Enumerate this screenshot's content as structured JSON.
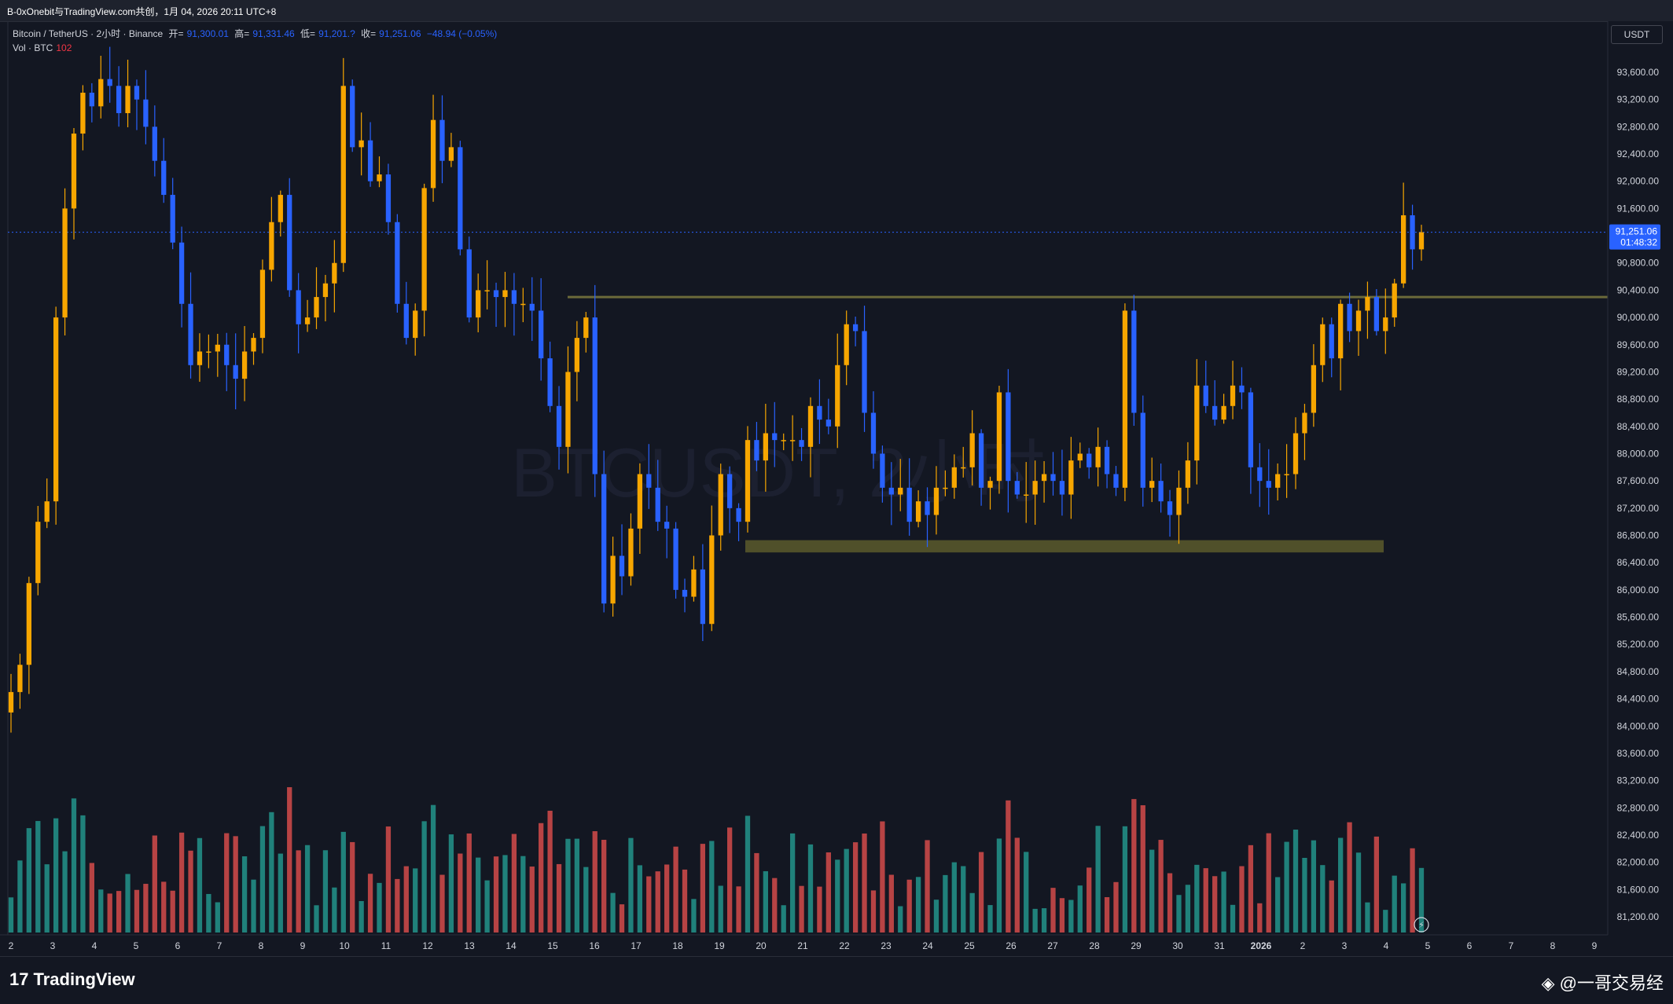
{
  "header": {
    "title": "B-0xOnebit与TradingView.com共创，1月 04, 2026 20:11 UTC+8"
  },
  "legend": {
    "symbol": "Bitcoin / TetherUS · 2小时 · Binance",
    "open_label": "开=",
    "open_value": "91,300.01",
    "high_label": "高=",
    "high_value": "91,331.46",
    "low_label": "低=",
    "low_value": "91,201.?",
    "close_label": "收=",
    "close_value": "91,251.06",
    "change": "−48.94 (−0.05%)",
    "vol_label": "Vol · BTC",
    "vol_value": "102"
  },
  "currency_button": "USDT",
  "watermark": "BTCUSDT, 2小时",
  "price_tag": {
    "price": "91,251.06",
    "countdown": "01:48:32",
    "value": 91251.06
  },
  "footer": {
    "brand": "TradingView",
    "brand_mark": "17",
    "credit": "@一哥交易经"
  },
  "colors": {
    "up": "#f7a600",
    "down": "#2962ff",
    "vol_up": "#26a69a",
    "vol_down": "#ef5350",
    "zone": "#5c5a2c",
    "background": "#131722"
  },
  "chart_data": {
    "type": "candlestick",
    "ylim": [
      80900,
      94000
    ],
    "y_ticks": [
      "81,200.00",
      "81,600.00",
      "82,000.00",
      "82,400.00",
      "82,800.00",
      "83,200.00",
      "83,600.00",
      "84,000.00",
      "84,400.00",
      "84,800.00",
      "85,200.00",
      "85,600.00",
      "86,000.00",
      "86,400.00",
      "86,800.00",
      "87,200.00",
      "87,600.00",
      "88,000.00",
      "88,400.00",
      "88,800.00",
      "89,200.00",
      "89,600.00",
      "90,000.00",
      "90,400.00",
      "90,800.00",
      "91,200.00",
      "91,600.00",
      "92,000.00",
      "92,400.00",
      "92,800.00",
      "93,200.00",
      "93,600.00"
    ],
    "y_tick_values": [
      81200,
      81600,
      82000,
      82400,
      82800,
      83200,
      83600,
      84000,
      84400,
      84800,
      85200,
      85600,
      86000,
      86400,
      86800,
      87200,
      87600,
      88000,
      88400,
      88800,
      89200,
      89600,
      90000,
      90400,
      90800,
      91200,
      91600,
      92000,
      92400,
      92800,
      93200,
      93600
    ],
    "x_ticks": [
      "2",
      "3",
      "4",
      "5",
      "6",
      "7",
      "8",
      "9",
      "10",
      "11",
      "12",
      "13",
      "14",
      "15",
      "16",
      "17",
      "18",
      "19",
      "20",
      "21",
      "22",
      "23",
      "24",
      "25",
      "26",
      "27",
      "28",
      "29",
      "30",
      "31",
      "2026",
      "2",
      "3",
      "4",
      "5",
      "6",
      "7",
      "8",
      "9"
    ],
    "resistance_line": 90300,
    "support_zone": [
      86550,
      86730
    ],
    "closes": [
      84500,
      84900,
      86100,
      87000,
      87300,
      90000,
      91600,
      92700,
      93300,
      93100,
      93500,
      93400,
      93000,
      93400,
      93200,
      92800,
      92300,
      91800,
      91100,
      90200,
      89300,
      89500,
      89500,
      89600,
      89300,
      89100,
      89500,
      89700,
      90700,
      91400,
      91800,
      90400,
      89900,
      90000,
      90300,
      90500,
      90800,
      93400,
      92500,
      92600,
      92000,
      92100,
      91400,
      90200,
      89700,
      90100,
      91900,
      92900,
      92300,
      92500,
      91000,
      90000,
      90400,
      90400,
      90300,
      90400,
      90200,
      90200,
      90100,
      89400,
      88700,
      88100,
      89200,
      89700,
      90000,
      87700,
      85800,
      86500,
      86200,
      86900,
      87700,
      87500,
      87000,
      86900,
      86000,
      85900,
      86300,
      85500,
      86800,
      87700,
      87200,
      87000,
      88200,
      87900,
      88300,
      88200,
      88200,
      88200,
      88100,
      88700,
      88500,
      88400,
      89300,
      89900,
      89800,
      88600,
      88000,
      87500,
      87400,
      87500,
      87000,
      87300,
      87100,
      87500,
      87500,
      87800,
      87800,
      88300,
      87500,
      87600,
      88900,
      87600,
      87400,
      87400,
      87600,
      87700,
      87600,
      87400,
      87900,
      88000,
      87800,
      88100,
      87700,
      87500,
      90100,
      88600,
      87500,
      87600,
      87300,
      87100,
      87500,
      87900,
      89000,
      88700,
      88500,
      88700,
      89000,
      88900,
      87800,
      87600,
      87500,
      87700,
      87700,
      88300,
      88600,
      89300,
      89900,
      89400,
      90200,
      89800,
      90100,
      90300,
      89800,
      90000,
      90500,
      91500,
      91000,
      91251
    ],
    "up_candle_color": "#f7a600",
    "down_candle_color": "#2962ff"
  }
}
